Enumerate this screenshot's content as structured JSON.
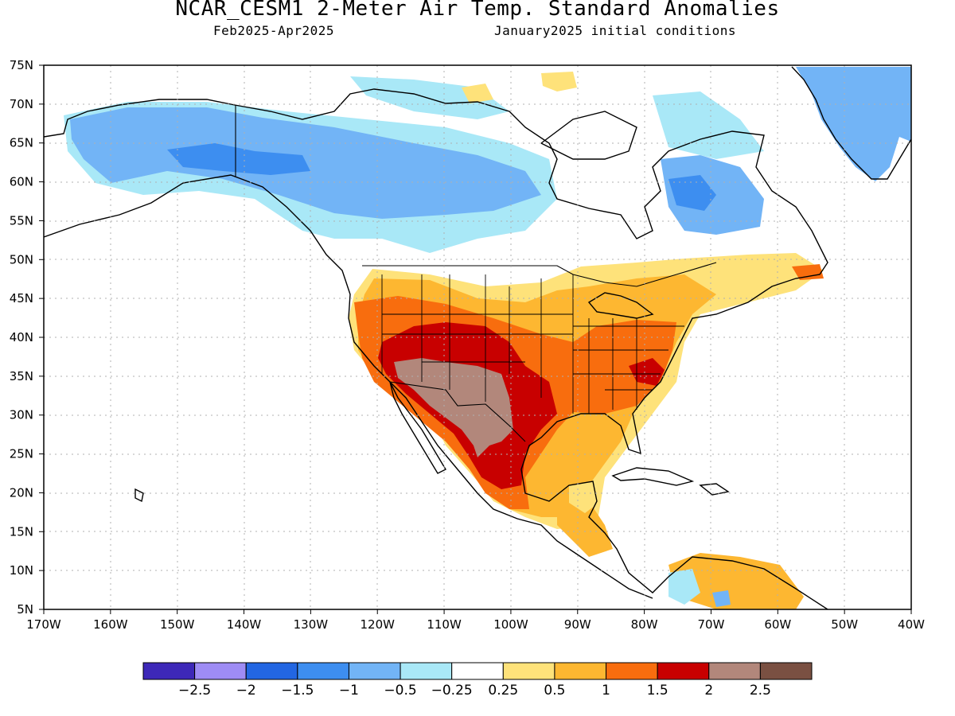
{
  "title": "NCAR_CESM1 2-Meter Air Temp. Standard Anomalies",
  "subtitle_left": "Feb2025-Apr2025",
  "subtitle_right": "January2025 initial conditions",
  "map": {
    "lat_labels": [
      "75N",
      "70N",
      "65N",
      "60N",
      "55N",
      "50N",
      "45N",
      "40N",
      "35N",
      "30N",
      "25N",
      "20N",
      "15N",
      "10N",
      "5N"
    ],
    "lon_labels": [
      "170W",
      "160W",
      "150W",
      "140W",
      "130W",
      "120W",
      "110W",
      "100W",
      "90W",
      "80W",
      "70W",
      "60W",
      "50W",
      "40W"
    ],
    "lat_range": [
      5,
      75
    ],
    "lon_range": [
      -170,
      -40
    ],
    "grid": "dotted"
  },
  "colorbar": {
    "colors": [
      "#3d28b8",
      "#9e8cf5",
      "#2266e2",
      "#3d8ef0",
      "#72b4f6",
      "#a9e8f7",
      "#ffffff",
      "#fee27a",
      "#fdb731",
      "#f86d0e",
      "#c80000",
      "#b2877b",
      "#7a5042"
    ],
    "labels": [
      "-2.5",
      "-2",
      "-1.5",
      "-1",
      "-0.5",
      "-0.25",
      "0.25",
      "0.5",
      "1",
      "1.5",
      "2",
      "2.5"
    ]
  },
  "colors": {
    "land_outline": "#000000",
    "grid": "#b0b0b0"
  }
}
